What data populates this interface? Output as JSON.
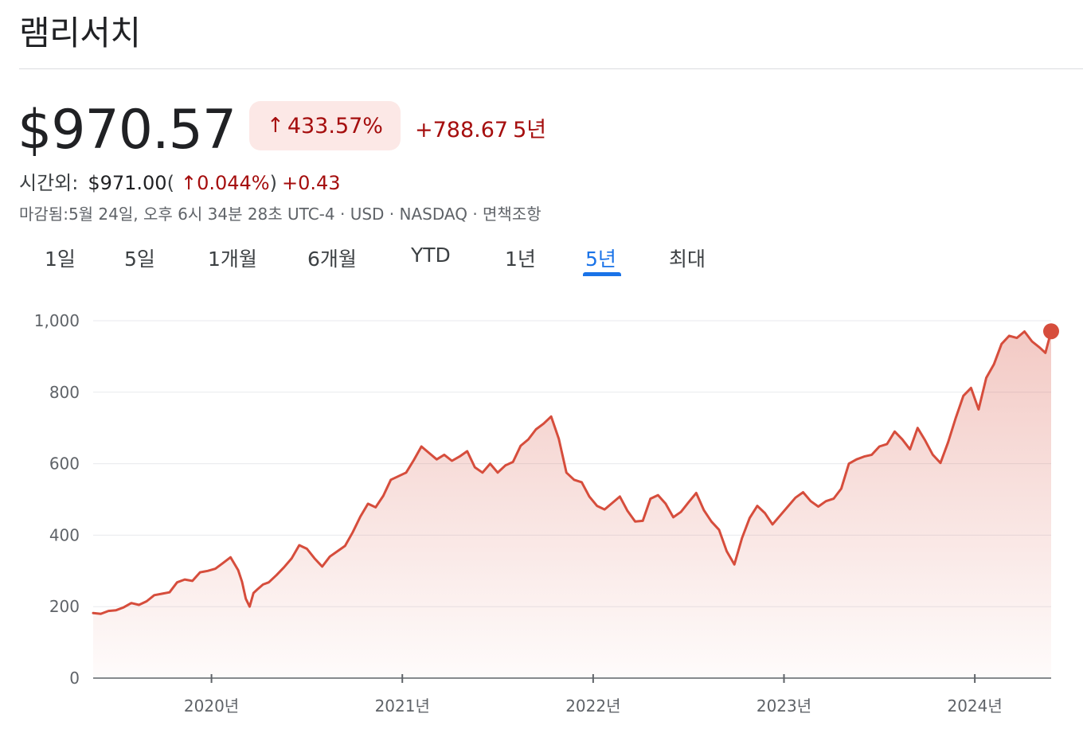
{
  "header": {
    "title": "램리서치"
  },
  "quote": {
    "price": "$970.57",
    "change_pct": "433.57%",
    "change_abs": "+788.67",
    "change_period": "5년",
    "arrow_icon": "arrow-up-icon"
  },
  "after_hours": {
    "label": "시간외:",
    "price": "$971.00",
    "open_paren": "(",
    "pct": "↑0.044%",
    "close_paren": ")",
    "abs": "+0.43"
  },
  "meta": {
    "text": "마감됨:5월 24일, 오후 6시 34분 28초 UTC-4 · USD · NASDAQ · 면책조항"
  },
  "tabs": [
    {
      "label": "1일"
    },
    {
      "label": "5일"
    },
    {
      "label": "1개월"
    },
    {
      "label": "6개월"
    },
    {
      "label": "YTD"
    },
    {
      "label": "1년"
    },
    {
      "label": "5년"
    },
    {
      "label": "최대"
    }
  ],
  "active_tab": 6,
  "colors": {
    "line": "#d64d3c",
    "accent": "#1a73e8",
    "negative_bg": "#fce8e6",
    "negative_text": "#a50e0e"
  },
  "chart_data": {
    "type": "area",
    "ylim": [
      0,
      1000
    ],
    "y_ticks": [
      0,
      200,
      400,
      600,
      800,
      1000
    ],
    "y_tick_labels": [
      "0",
      "200",
      "400",
      "600",
      "800",
      "1,000"
    ],
    "xlim": [
      2019.38,
      2024.4
    ],
    "x_ticks": [
      2020,
      2021,
      2022,
      2023,
      2024
    ],
    "x_tick_labels": [
      "2020년",
      "2021년",
      "2022년",
      "2023년",
      "2024년"
    ],
    "grid": true,
    "series": [
      {
        "x": [
          2019.38,
          2019.42,
          2019.46,
          2019.5,
          2019.54,
          2019.58,
          2019.62,
          2019.66,
          2019.7,
          2019.74,
          2019.78,
          2019.82,
          2019.86,
          2019.9,
          2019.94,
          2019.98,
          2020.02,
          2020.06,
          2020.1,
          2020.14,
          2020.16,
          2020.18,
          2020.2,
          2020.22,
          2020.24,
          2020.27,
          2020.3,
          2020.34,
          2020.38,
          2020.42,
          2020.46,
          2020.5,
          2020.54,
          2020.58,
          2020.62,
          2020.66,
          2020.7,
          2020.74,
          2020.78,
          2020.82,
          2020.86,
          2020.9,
          2020.94,
          2020.98,
          2021.02,
          2021.06,
          2021.1,
          2021.14,
          2021.18,
          2021.22,
          2021.26,
          2021.3,
          2021.34,
          2021.38,
          2021.42,
          2021.46,
          2021.5,
          2021.54,
          2021.58,
          2021.62,
          2021.66,
          2021.7,
          2021.74,
          2021.78,
          2021.82,
          2021.86,
          2021.9,
          2021.94,
          2021.98,
          2022.02,
          2022.06,
          2022.1,
          2022.14,
          2022.18,
          2022.22,
          2022.26,
          2022.3,
          2022.34,
          2022.38,
          2022.42,
          2022.46,
          2022.5,
          2022.54,
          2022.58,
          2022.62,
          2022.66,
          2022.7,
          2022.74,
          2022.78,
          2022.82,
          2022.86,
          2022.9,
          2022.94,
          2022.98,
          2023.02,
          2023.06,
          2023.1,
          2023.14,
          2023.18,
          2023.22,
          2023.26,
          2023.3,
          2023.34,
          2023.38,
          2023.42,
          2023.46,
          2023.5,
          2023.54,
          2023.58,
          2023.62,
          2023.66,
          2023.7,
          2023.74,
          2023.78,
          2023.82,
          2023.86,
          2023.9,
          2023.94,
          2023.98,
          2024.02,
          2024.06,
          2024.1,
          2024.14,
          2024.18,
          2024.22,
          2024.26,
          2024.3,
          2024.34,
          2024.37,
          2024.4
        ],
        "y": [
          182,
          180,
          188,
          190,
          198,
          210,
          205,
          215,
          232,
          236,
          240,
          268,
          276,
          272,
          296,
          300,
          306,
          322,
          338,
          302,
          270,
          222,
          200,
          238,
          248,
          262,
          268,
          288,
          310,
          335,
          372,
          362,
          335,
          312,
          340,
          355,
          370,
          408,
          452,
          488,
          478,
          510,
          555,
          565,
          575,
          610,
          648,
          630,
          612,
          625,
          608,
          620,
          635,
          590,
          575,
          600,
          575,
          595,
          605,
          650,
          668,
          696,
          712,
          732,
          670,
          575,
          555,
          548,
          508,
          482,
          472,
          490,
          508,
          468,
          438,
          440,
          502,
          512,
          488,
          450,
          465,
          492,
          518,
          470,
          438,
          415,
          355,
          318,
          392,
          448,
          482,
          462,
          430,
          455,
          480,
          505,
          520,
          495,
          480,
          495,
          502,
          530,
          600,
          612,
          620,
          625,
          648,
          655,
          690,
          668,
          640,
          700,
          665,
          625,
          602,
          660,
          728,
          790,
          812,
          752,
          840,
          878,
          935,
          958,
          952,
          970,
          942,
          925,
          910,
          970.57
        ]
      }
    ]
  }
}
